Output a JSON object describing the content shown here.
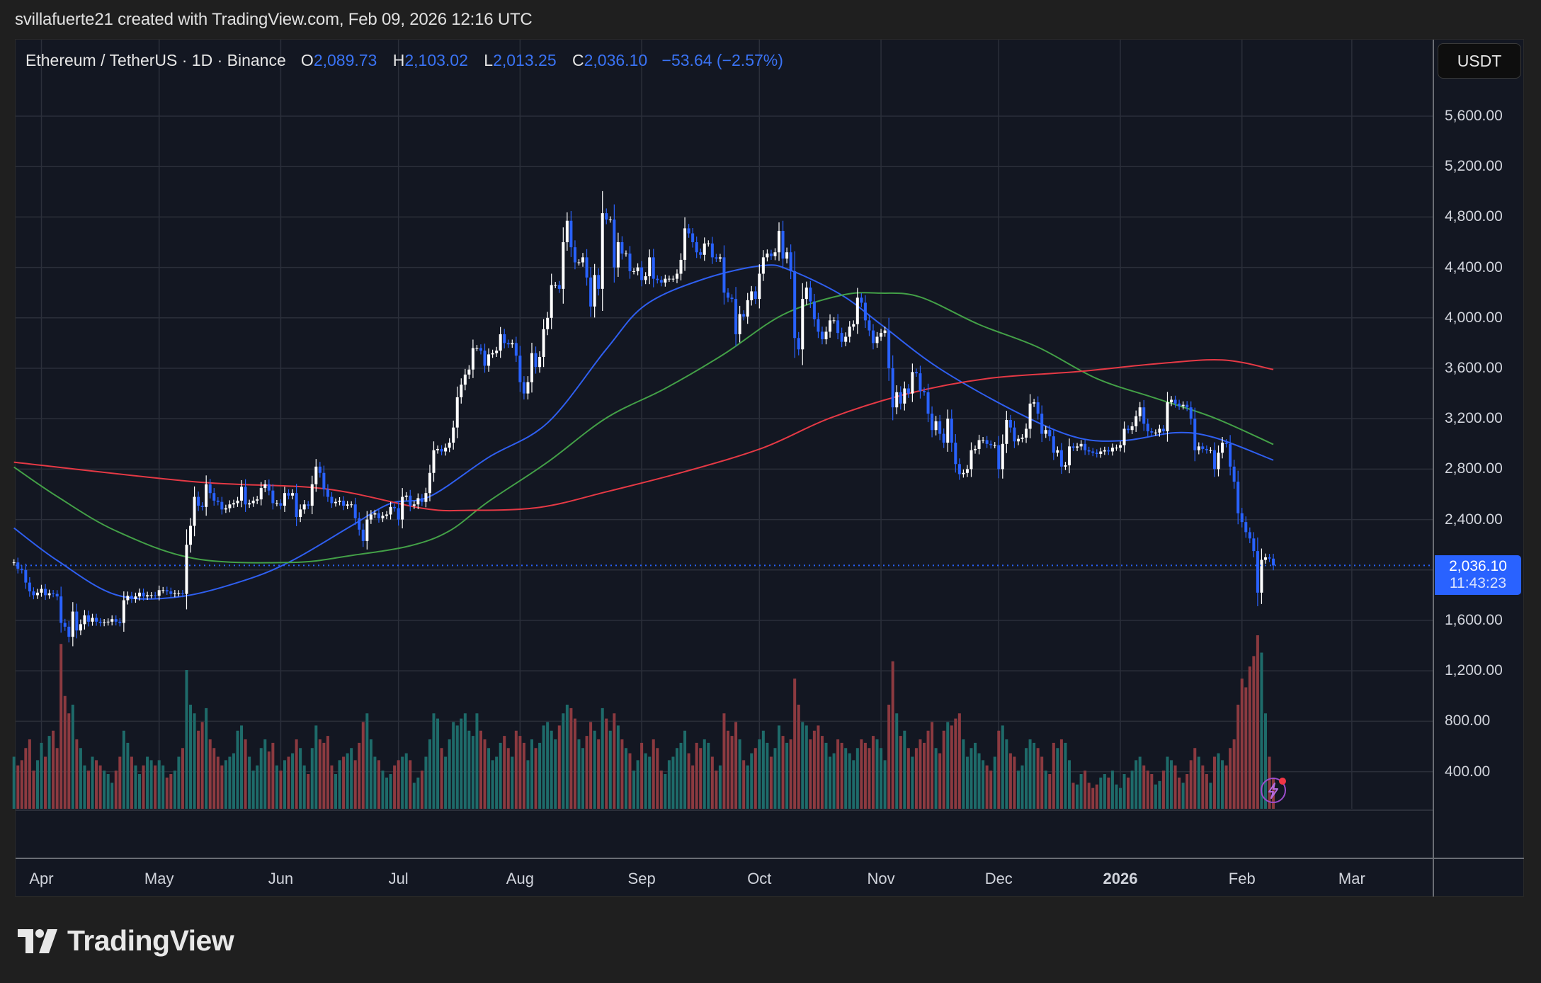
{
  "credit": "svillafuerte21 created with TradingView.com, Feb 09, 2026 12:16 UTC",
  "legend": {
    "symbol": "Ethereum / TetherUS · 1D · Binance",
    "o_label": "O",
    "o": "2,089.73",
    "h_label": "H",
    "h": "2,103.02",
    "l_label": "L",
    "l": "2,013.25",
    "c_label": "C",
    "c": "2,036.10",
    "change": "−53.64 (−2.57%)"
  },
  "currency_button": "USDT",
  "price_axis": [
    "5,600.00",
    "5,200.00",
    "4,800.00",
    "4,400.00",
    "4,000.00",
    "3,600.00",
    "3,200.00",
    "2,800.00",
    "2,400.00",
    "1,600.00",
    "1,200.00",
    "800.00",
    "400.00"
  ],
  "current_price": {
    "price": "2,036.10",
    "countdown": "11:43:23"
  },
  "time_axis": [
    {
      "label": "Apr",
      "date": "2025-04-01"
    },
    {
      "label": "May",
      "date": "2025-05-01"
    },
    {
      "label": "Jun",
      "date": "2025-06-01"
    },
    {
      "label": "Jul",
      "date": "2025-07-01"
    },
    {
      "label": "Aug",
      "date": "2025-08-01"
    },
    {
      "label": "Sep",
      "date": "2025-09-01"
    },
    {
      "label": "Oct",
      "date": "2025-10-01"
    },
    {
      "label": "Nov",
      "date": "2025-11-01"
    },
    {
      "label": "Dec",
      "date": "2025-12-01"
    },
    {
      "label": "2026",
      "date": "2026-01-01",
      "bold": true
    },
    {
      "label": "Feb",
      "date": "2026-02-01"
    },
    {
      "label": "Mar",
      "date": "2026-03-01"
    }
  ],
  "brand": "TradingView",
  "colors": {
    "up": "#ffffff",
    "down": "#2962ff",
    "vol_up": "#1e6b6a",
    "vol_down": "#8c3a40",
    "ma_fast": "#2f5ff0",
    "ma_mid": "#43a047",
    "ma_slow": "#e53945",
    "price_line": "#2962ff"
  },
  "icons": [
    "lightning-icon",
    "tradingview-logo-icon"
  ],
  "chart_data": {
    "type": "candlestick",
    "start_date": "2025-03-25",
    "last_close": 2036.1,
    "ylim": [
      0,
      5900
    ],
    "grid": true,
    "closes": [
      2060,
      2010,
      2000,
      1900,
      1830,
      1800,
      1820,
      1850,
      1800,
      1815,
      1810,
      1790,
      1580,
      1550,
      1470,
      1670,
      1520,
      1570,
      1640,
      1590,
      1620,
      1590,
      1580,
      1585,
      1590,
      1610,
      1590,
      1580,
      1760,
      1795,
      1770,
      1790,
      1820,
      1790,
      1800,
      1800,
      1795,
      1840,
      1840,
      1830,
      1810,
      1815,
      1815,
      1810,
      2200,
      2350,
      2580,
      2510,
      2500,
      2680,
      2610,
      2550,
      2540,
      2480,
      2490,
      2520,
      2530,
      2550,
      2660,
      2520,
      2530,
      2550,
      2560,
      2650,
      2680,
      2630,
      2530,
      2530,
      2510,
      2610,
      2590,
      2610,
      2420,
      2480,
      2520,
      2510,
      2680,
      2820,
      2770,
      2640,
      2580,
      2530,
      2540,
      2550,
      2510,
      2520,
      2520,
      2410,
      2320,
      2230,
      2400,
      2440,
      2450,
      2410,
      2430,
      2440,
      2500,
      2490,
      2400,
      2580,
      2590,
      2510,
      2520,
      2570,
      2540,
      2610,
      2770,
      2950,
      2960,
      2940,
      2970,
      3010,
      3130,
      3370,
      3470,
      3550,
      3590,
      3760,
      3760,
      3740,
      3620,
      3710,
      3720,
      3740,
      3870,
      3800,
      3790,
      3800,
      3700,
      3490,
      3400,
      3490,
      3720,
      3610,
      3690,
      3910,
      4000,
      4260,
      4260,
      4230,
      4600,
      4770,
      4560,
      4440,
      4440,
      4480,
      4320,
      4090,
      4340,
      4230,
      4830,
      4780,
      4780,
      4400,
      4600,
      4510,
      4510,
      4370,
      4370,
      4400,
      4300,
      4330,
      4480,
      4310,
      4300,
      4280,
      4310,
      4310,
      4310,
      4350,
      4460,
      4710,
      4670,
      4600,
      4520,
      4500,
      4590,
      4590,
      4480,
      4470,
      4480,
      4200,
      4160,
      4150,
      3870,
      4030,
      4010,
      4140,
      4210,
      4150,
      4350,
      4480,
      4510,
      4490,
      4520,
      4690,
      4470,
      4520,
      4370,
      3840,
      3750,
      4150,
      4240,
      4130,
      3990,
      3890,
      3830,
      3890,
      3980,
      3980,
      3880,
      3810,
      3850,
      3930,
      3950,
      4160,
      4120,
      3980,
      3900,
      3800,
      3850,
      3880,
      3900,
      3600,
      3290,
      3410,
      3320,
      3440,
      3400,
      3570,
      3560,
      3420,
      3410,
      3240,
      3110,
      3180,
      3080,
      3010,
      3200,
      3010,
      2840,
      2760,
      2770,
      2800,
      2950,
      2960,
      3030,
      3030,
      3000,
      2990,
      2990,
      2800,
      3000,
      3190,
      3130,
      3020,
      3040,
      3050,
      3120,
      3320,
      3330,
      3240,
      3080,
      3110,
      3060,
      2930,
      2950,
      2820,
      2830,
      2980,
      2970,
      2980,
      3000,
      2950,
      2940,
      2930,
      2920,
      2940,
      2950,
      2940,
      2970,
      2970,
      2990,
      3120,
      3110,
      3140,
      3220,
      3290,
      3160,
      3100,
      3090,
      3090,
      3120,
      3100,
      3330,
      3350,
      3320,
      3300,
      3310,
      3290,
      3200,
      2950,
      2980,
      2960,
      2950,
      2950,
      2800,
      2930,
      3010,
      3000,
      2820,
      2700,
      2450,
      2380,
      2300,
      2250,
      2150,
      1820,
      2080,
      2100,
      2090,
      2036.1
    ],
    "volume": [
      30,
      25,
      28,
      35,
      40,
      22,
      28,
      38,
      30,
      42,
      45,
      35,
      95,
      65,
      55,
      60,
      40,
      35,
      25,
      22,
      30,
      28,
      25,
      22,
      20,
      15,
      22,
      30,
      45,
      38,
      30,
      25,
      20,
      25,
      30,
      28,
      25,
      28,
      25,
      18,
      20,
      22,
      30,
      35,
      80,
      60,
      55,
      45,
      50,
      58,
      40,
      35,
      30,
      25,
      28,
      30,
      32,
      45,
      48,
      40,
      30,
      22,
      25,
      35,
      40,
      33,
      38,
      25,
      22,
      28,
      30,
      32,
      40,
      35,
      25,
      20,
      35,
      48,
      40,
      38,
      42,
      25,
      20,
      28,
      30,
      32,
      35,
      28,
      38,
      50,
      55,
      40,
      30,
      28,
      22,
      18,
      20,
      25,
      28,
      30,
      32,
      28,
      15,
      18,
      22,
      30,
      40,
      55,
      52,
      35,
      30,
      40,
      50,
      48,
      52,
      55,
      45,
      42,
      55,
      45,
      40,
      35,
      28,
      30,
      38,
      42,
      35,
      30,
      45,
      42,
      38,
      28,
      40,
      35,
      38,
      48,
      50,
      45,
      40,
      48,
      55,
      60,
      58,
      52,
      40,
      35,
      42,
      50,
      45,
      40,
      58,
      52,
      45,
      55,
      48,
      40,
      35,
      32,
      22,
      28,
      38,
      32,
      30,
      40,
      35,
      22,
      20,
      28,
      30,
      35,
      38,
      45,
      32,
      25,
      38,
      35,
      40,
      38,
      30,
      22,
      25,
      55,
      45,
      42,
      50,
      40,
      28,
      25,
      32,
      35,
      40,
      45,
      38,
      30,
      35,
      48,
      42,
      38,
      40,
      75,
      60,
      50,
      48,
      40,
      45,
      48,
      42,
      38,
      30,
      32,
      40,
      38,
      35,
      32,
      28,
      35,
      40,
      38,
      35,
      42,
      40,
      35,
      28,
      60,
      85,
      55,
      42,
      45,
      35,
      30,
      35,
      40,
      38,
      45,
      50,
      35,
      32,
      45,
      50,
      48,
      52,
      55,
      40,
      30,
      35,
      38,
      32,
      28,
      25,
      22,
      30,
      45,
      48,
      40,
      32,
      30,
      22,
      25,
      35,
      40,
      38,
      35,
      30,
      22,
      20,
      38,
      35,
      40,
      38,
      28,
      15,
      14,
      20,
      22,
      15,
      12,
      14,
      18,
      20,
      18,
      22,
      14,
      12,
      20,
      18,
      22,
      28,
      30,
      25,
      22,
      20,
      14,
      16,
      22,
      30,
      28,
      25,
      18,
      15,
      20,
      28,
      35,
      30,
      25,
      20,
      15,
      30,
      32,
      28,
      25,
      35,
      40,
      60,
      75,
      70,
      82,
      88,
      100,
      90,
      55,
      30,
      18
    ],
    "moving_averages": [
      {
        "color_key": "ma_fast",
        "points": [
          [
            "2025-03-25",
            2333
          ],
          [
            "2025-04-05",
            2076
          ],
          [
            "2025-04-20",
            1803
          ],
          [
            "2025-05-06",
            1787
          ],
          [
            "2025-05-23",
            1920
          ],
          [
            "2025-06-04",
            2076
          ],
          [
            "2025-06-19",
            2350
          ],
          [
            "2025-06-29",
            2528
          ],
          [
            "2025-07-09",
            2583
          ],
          [
            "2025-07-24",
            2894
          ],
          [
            "2025-08-08",
            3167
          ],
          [
            "2025-08-23",
            3752
          ],
          [
            "2025-09-02",
            4103
          ],
          [
            "2025-09-17",
            4310
          ],
          [
            "2025-10-02",
            4415
          ],
          [
            "2025-10-09",
            4376
          ],
          [
            "2025-10-22",
            4180
          ],
          [
            "2025-11-01",
            3947
          ],
          [
            "2025-11-16",
            3596
          ],
          [
            "2025-12-06",
            3245
          ],
          [
            "2025-12-21",
            3050
          ],
          [
            "2026-01-02",
            3027
          ],
          [
            "2026-01-15",
            3089
          ],
          [
            "2026-01-25",
            3050
          ],
          [
            "2026-02-09",
            2871
          ]
        ]
      },
      {
        "color_key": "ma_mid",
        "points": [
          [
            "2025-03-25",
            2816
          ],
          [
            "2025-04-05",
            2583
          ],
          [
            "2025-04-20",
            2310
          ],
          [
            "2025-05-10",
            2091
          ],
          [
            "2025-06-04",
            2060
          ],
          [
            "2025-06-19",
            2115
          ],
          [
            "2025-07-04",
            2192
          ],
          [
            "2025-07-14",
            2310
          ],
          [
            "2025-07-24",
            2544
          ],
          [
            "2025-08-08",
            2855
          ],
          [
            "2025-08-23",
            3206
          ],
          [
            "2025-09-07",
            3440
          ],
          [
            "2025-09-22",
            3713
          ],
          [
            "2025-10-07",
            4025
          ],
          [
            "2025-10-22",
            4180
          ],
          [
            "2025-11-01",
            4196
          ],
          [
            "2025-11-11",
            4165
          ],
          [
            "2025-11-26",
            3947
          ],
          [
            "2025-12-11",
            3767
          ],
          [
            "2025-12-26",
            3518
          ],
          [
            "2026-01-10",
            3362
          ],
          [
            "2026-01-25",
            3206
          ],
          [
            "2026-02-09",
            2996
          ]
        ]
      },
      {
        "color_key": "ma_slow",
        "points": [
          [
            "2025-03-25",
            2855
          ],
          [
            "2025-05-10",
            2700
          ],
          [
            "2025-06-12",
            2645
          ],
          [
            "2025-07-07",
            2490
          ],
          [
            "2025-07-19",
            2473
          ],
          [
            "2025-08-06",
            2497
          ],
          [
            "2025-08-23",
            2620
          ],
          [
            "2025-09-12",
            2780
          ],
          [
            "2025-10-02",
            2970
          ],
          [
            "2025-10-19",
            3205
          ],
          [
            "2025-11-08",
            3400
          ],
          [
            "2025-11-28",
            3518
          ],
          [
            "2025-12-21",
            3573
          ],
          [
            "2026-01-10",
            3635
          ],
          [
            "2026-01-27",
            3666
          ],
          [
            "2026-02-09",
            3590
          ]
        ]
      }
    ]
  }
}
